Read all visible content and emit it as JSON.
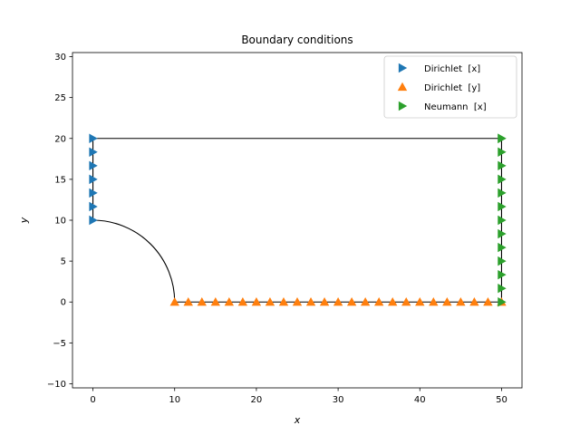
{
  "chart_data": {
    "type": "scatter",
    "title": "Boundary conditions",
    "xlabel": "x",
    "ylabel": "y",
    "xlim": [
      -2.5,
      52.5
    ],
    "ylim": [
      -10.5,
      30.5
    ],
    "xticks": [
      0,
      10,
      20,
      30,
      40,
      50
    ],
    "yticks": [
      -10,
      -5,
      0,
      5,
      10,
      15,
      20,
      25,
      30
    ],
    "grid": false,
    "legend_position": "top-right",
    "geometry": {
      "outline": [
        [
          10,
          0
        ],
        [
          50,
          0
        ],
        [
          50,
          20
        ],
        [
          0,
          20
        ],
        [
          0,
          10
        ]
      ],
      "arc": {
        "center": [
          0,
          0
        ],
        "radius": 10,
        "from_point": [
          0,
          10
        ],
        "to_point": [
          10,
          0
        ]
      }
    },
    "series": [
      {
        "name": "Dirichlet  [x]",
        "marker": "triangle-right",
        "color": "#1f77b4",
        "x": [
          0,
          0,
          0,
          0,
          0,
          0,
          0
        ],
        "y": [
          10,
          11.667,
          13.333,
          15,
          16.667,
          18.333,
          20
        ]
      },
      {
        "name": "Dirichlet  [y]",
        "marker": "triangle-up",
        "color": "#ff7f0e",
        "x": [
          10,
          11.667,
          13.333,
          15,
          16.667,
          18.333,
          20,
          21.667,
          23.333,
          25,
          26.667,
          28.333,
          30,
          31.667,
          33.333,
          35,
          36.667,
          38.333,
          40,
          41.667,
          43.333,
          45,
          46.667,
          48.333,
          50
        ],
        "y": [
          0,
          0,
          0,
          0,
          0,
          0,
          0,
          0,
          0,
          0,
          0,
          0,
          0,
          0,
          0,
          0,
          0,
          0,
          0,
          0,
          0,
          0,
          0,
          0,
          0
        ]
      },
      {
        "name": "Neumann  [x]",
        "marker": "triangle-right",
        "color": "#2ca02c",
        "x": [
          50,
          50,
          50,
          50,
          50,
          50,
          50,
          50,
          50,
          50,
          50,
          50,
          50,
          50
        ],
        "y": [
          0,
          1.667,
          3.333,
          5,
          6.667,
          8.333,
          10,
          11.667,
          13.333,
          15,
          16.667,
          18.333,
          20,
          20
        ]
      }
    ]
  }
}
